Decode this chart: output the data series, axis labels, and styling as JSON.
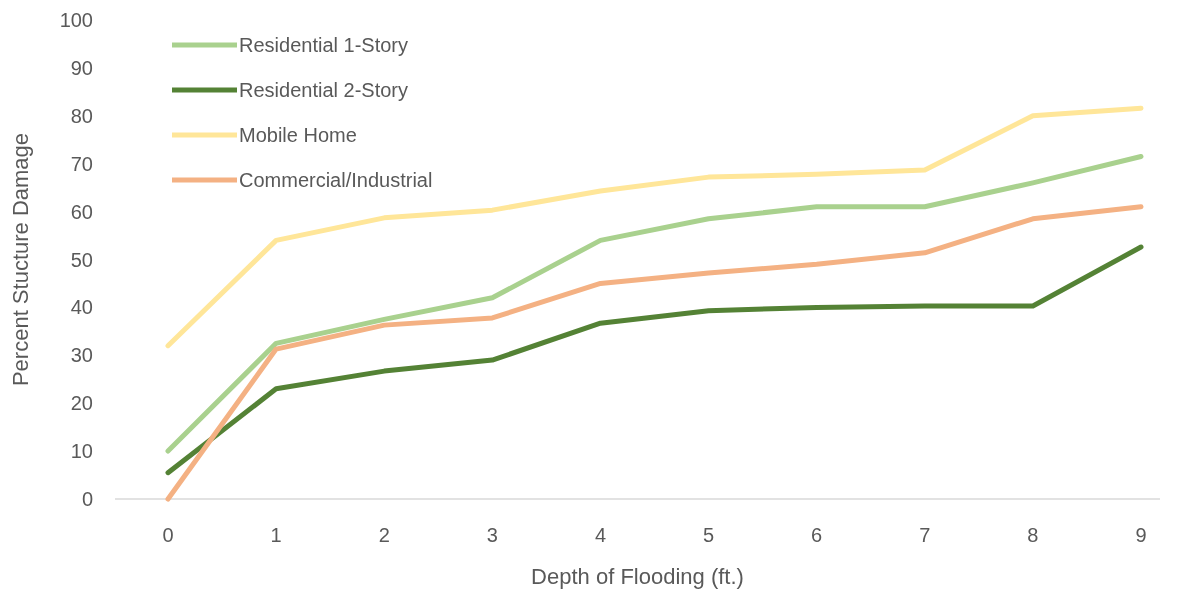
{
  "chart_data": {
    "type": "line",
    "xlabel": "Depth of Flooding (ft.)",
    "ylabel": "Percent Stucture Damage",
    "categories": [
      "0",
      "1",
      "2",
      "3",
      "4",
      "5",
      "6",
      "7",
      "8",
      "9"
    ],
    "ylim": [
      0,
      100
    ],
    "yticks": [
      0,
      10,
      20,
      30,
      40,
      50,
      60,
      70,
      80,
      90,
      100
    ],
    "grid": false,
    "legend": "top left",
    "marker": "none",
    "line_style": "solid",
    "series": [
      {
        "name": "Residential 1-Story",
        "color": "#a9d18e",
        "values": [
          10,
          32.5,
          37.5,
          42,
          54,
          58.5,
          61,
          61,
          66,
          71.5
        ]
      },
      {
        "name": "Residential 2-Story",
        "color": "#548235",
        "values": [
          5.5,
          23,
          26.7,
          29,
          36.7,
          39.3,
          40,
          40.3,
          40.3,
          52.6
        ]
      },
      {
        "name": "Mobile Home",
        "color": "#ffe699",
        "values": [
          32,
          54,
          58.7,
          60.3,
          64.3,
          67.2,
          67.8,
          68.7,
          80,
          81.6
        ]
      },
      {
        "name": "Commercial/Industrial",
        "color": "#f4b183",
        "values": [
          0,
          31.3,
          36.3,
          37.8,
          45,
          47.2,
          49,
          51.4,
          58.5,
          61
        ]
      }
    ]
  }
}
